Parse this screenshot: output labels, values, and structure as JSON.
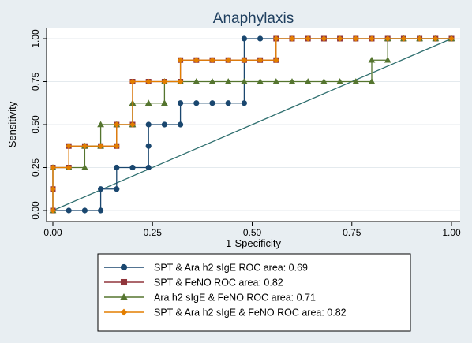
{
  "chart_data": {
    "type": "line",
    "title": "Anaphylaxis",
    "xlabel": "1-Specificity",
    "ylabel": "Sensitivity",
    "xlim": [
      0,
      1
    ],
    "ylim": [
      0,
      1
    ],
    "xticks": [
      "0.00",
      "0.25",
      "0.50",
      "0.75",
      "1.00"
    ],
    "yticks": [
      "0.00",
      "0.25",
      "0.50",
      "0.75",
      "1.00"
    ],
    "grid": "horizontal",
    "legend_position": "bottom",
    "reference_line": {
      "x": [
        0,
        1
      ],
      "y": [
        0,
        1
      ],
      "color": "#2f6f6f"
    },
    "series": [
      {
        "name": "SPT & Ara h2 sIgE ROC area: 0.69",
        "color": "#1a476f",
        "marker": "circle",
        "x": [
          0,
          0.04,
          0.08,
          0.12,
          0.12,
          0.16,
          0.16,
          0.2,
          0.24,
          0.24,
          0.24,
          0.28,
          0.32,
          0.32,
          0.36,
          0.4,
          0.44,
          0.48,
          0.48,
          0.52,
          0.56,
          0.6,
          0.64,
          0.68,
          0.72,
          0.76,
          0.8,
          0.84,
          0.88,
          0.92,
          0.96,
          1.0
        ],
        "y": [
          0,
          0,
          0,
          0,
          0.125,
          0.125,
          0.25,
          0.25,
          0.25,
          0.375,
          0.5,
          0.5,
          0.5,
          0.625,
          0.625,
          0.625,
          0.625,
          0.625,
          1.0,
          1.0,
          1.0,
          1.0,
          1.0,
          1.0,
          1.0,
          1.0,
          1.0,
          1.0,
          1.0,
          1.0,
          1.0,
          1.0
        ]
      },
      {
        "name": "SPT & FeNO ROC area: 0.82",
        "color": "#90353b",
        "marker": "square",
        "x": [
          0,
          0,
          0,
          0.04,
          0.04,
          0.08,
          0.12,
          0.16,
          0.16,
          0.2,
          0.2,
          0.24,
          0.28,
          0.32,
          0.32,
          0.36,
          0.4,
          0.44,
          0.48,
          0.52,
          0.56,
          0.56,
          0.6,
          0.64,
          0.68,
          0.72,
          0.76,
          0.8,
          0.84,
          0.88,
          0.92,
          0.96,
          1.0
        ],
        "y": [
          0,
          0.125,
          0.25,
          0.25,
          0.375,
          0.375,
          0.375,
          0.375,
          0.5,
          0.5,
          0.75,
          0.75,
          0.75,
          0.75,
          0.875,
          0.875,
          0.875,
          0.875,
          0.875,
          0.875,
          0.875,
          1.0,
          1.0,
          1.0,
          1.0,
          1.0,
          1.0,
          1.0,
          1.0,
          1.0,
          1.0,
          1.0,
          1.0
        ]
      },
      {
        "name": "Ara h2 sIgE & FeNO ROC area: 0.71",
        "color": "#55752f",
        "marker": "triangle",
        "x": [
          0,
          0,
          0.04,
          0.08,
          0.08,
          0.12,
          0.12,
          0.16,
          0.2,
          0.2,
          0.24,
          0.28,
          0.28,
          0.32,
          0.36,
          0.4,
          0.44,
          0.48,
          0.52,
          0.56,
          0.6,
          0.64,
          0.68,
          0.72,
          0.76,
          0.8,
          0.8,
          0.84,
          0.84,
          0.88,
          0.92,
          0.96,
          1.0
        ],
        "y": [
          0,
          0.25,
          0.25,
          0.25,
          0.375,
          0.375,
          0.5,
          0.5,
          0.5,
          0.625,
          0.625,
          0.625,
          0.75,
          0.75,
          0.75,
          0.75,
          0.75,
          0.75,
          0.75,
          0.75,
          0.75,
          0.75,
          0.75,
          0.75,
          0.75,
          0.75,
          0.875,
          0.875,
          1.0,
          1.0,
          1.0,
          1.0,
          1.0
        ]
      },
      {
        "name": "SPT & Ara h2 sIgE & FeNO ROC area: 0.82",
        "color": "#e37e00",
        "marker": "diamond",
        "x": [
          0,
          0,
          0,
          0.04,
          0.04,
          0.08,
          0.12,
          0.16,
          0.16,
          0.2,
          0.2,
          0.24,
          0.28,
          0.32,
          0.32,
          0.36,
          0.4,
          0.44,
          0.48,
          0.52,
          0.56,
          0.56,
          0.6,
          0.64,
          0.68,
          0.72,
          0.76,
          0.8,
          0.84,
          0.88,
          0.92,
          0.96,
          1.0
        ],
        "y": [
          0,
          0.125,
          0.25,
          0.25,
          0.375,
          0.375,
          0.375,
          0.375,
          0.5,
          0.5,
          0.75,
          0.75,
          0.75,
          0.75,
          0.875,
          0.875,
          0.875,
          0.875,
          0.875,
          0.875,
          0.875,
          1.0,
          1.0,
          1.0,
          1.0,
          1.0,
          1.0,
          1.0,
          1.0,
          1.0,
          1.0,
          1.0,
          1.0
        ]
      }
    ]
  }
}
